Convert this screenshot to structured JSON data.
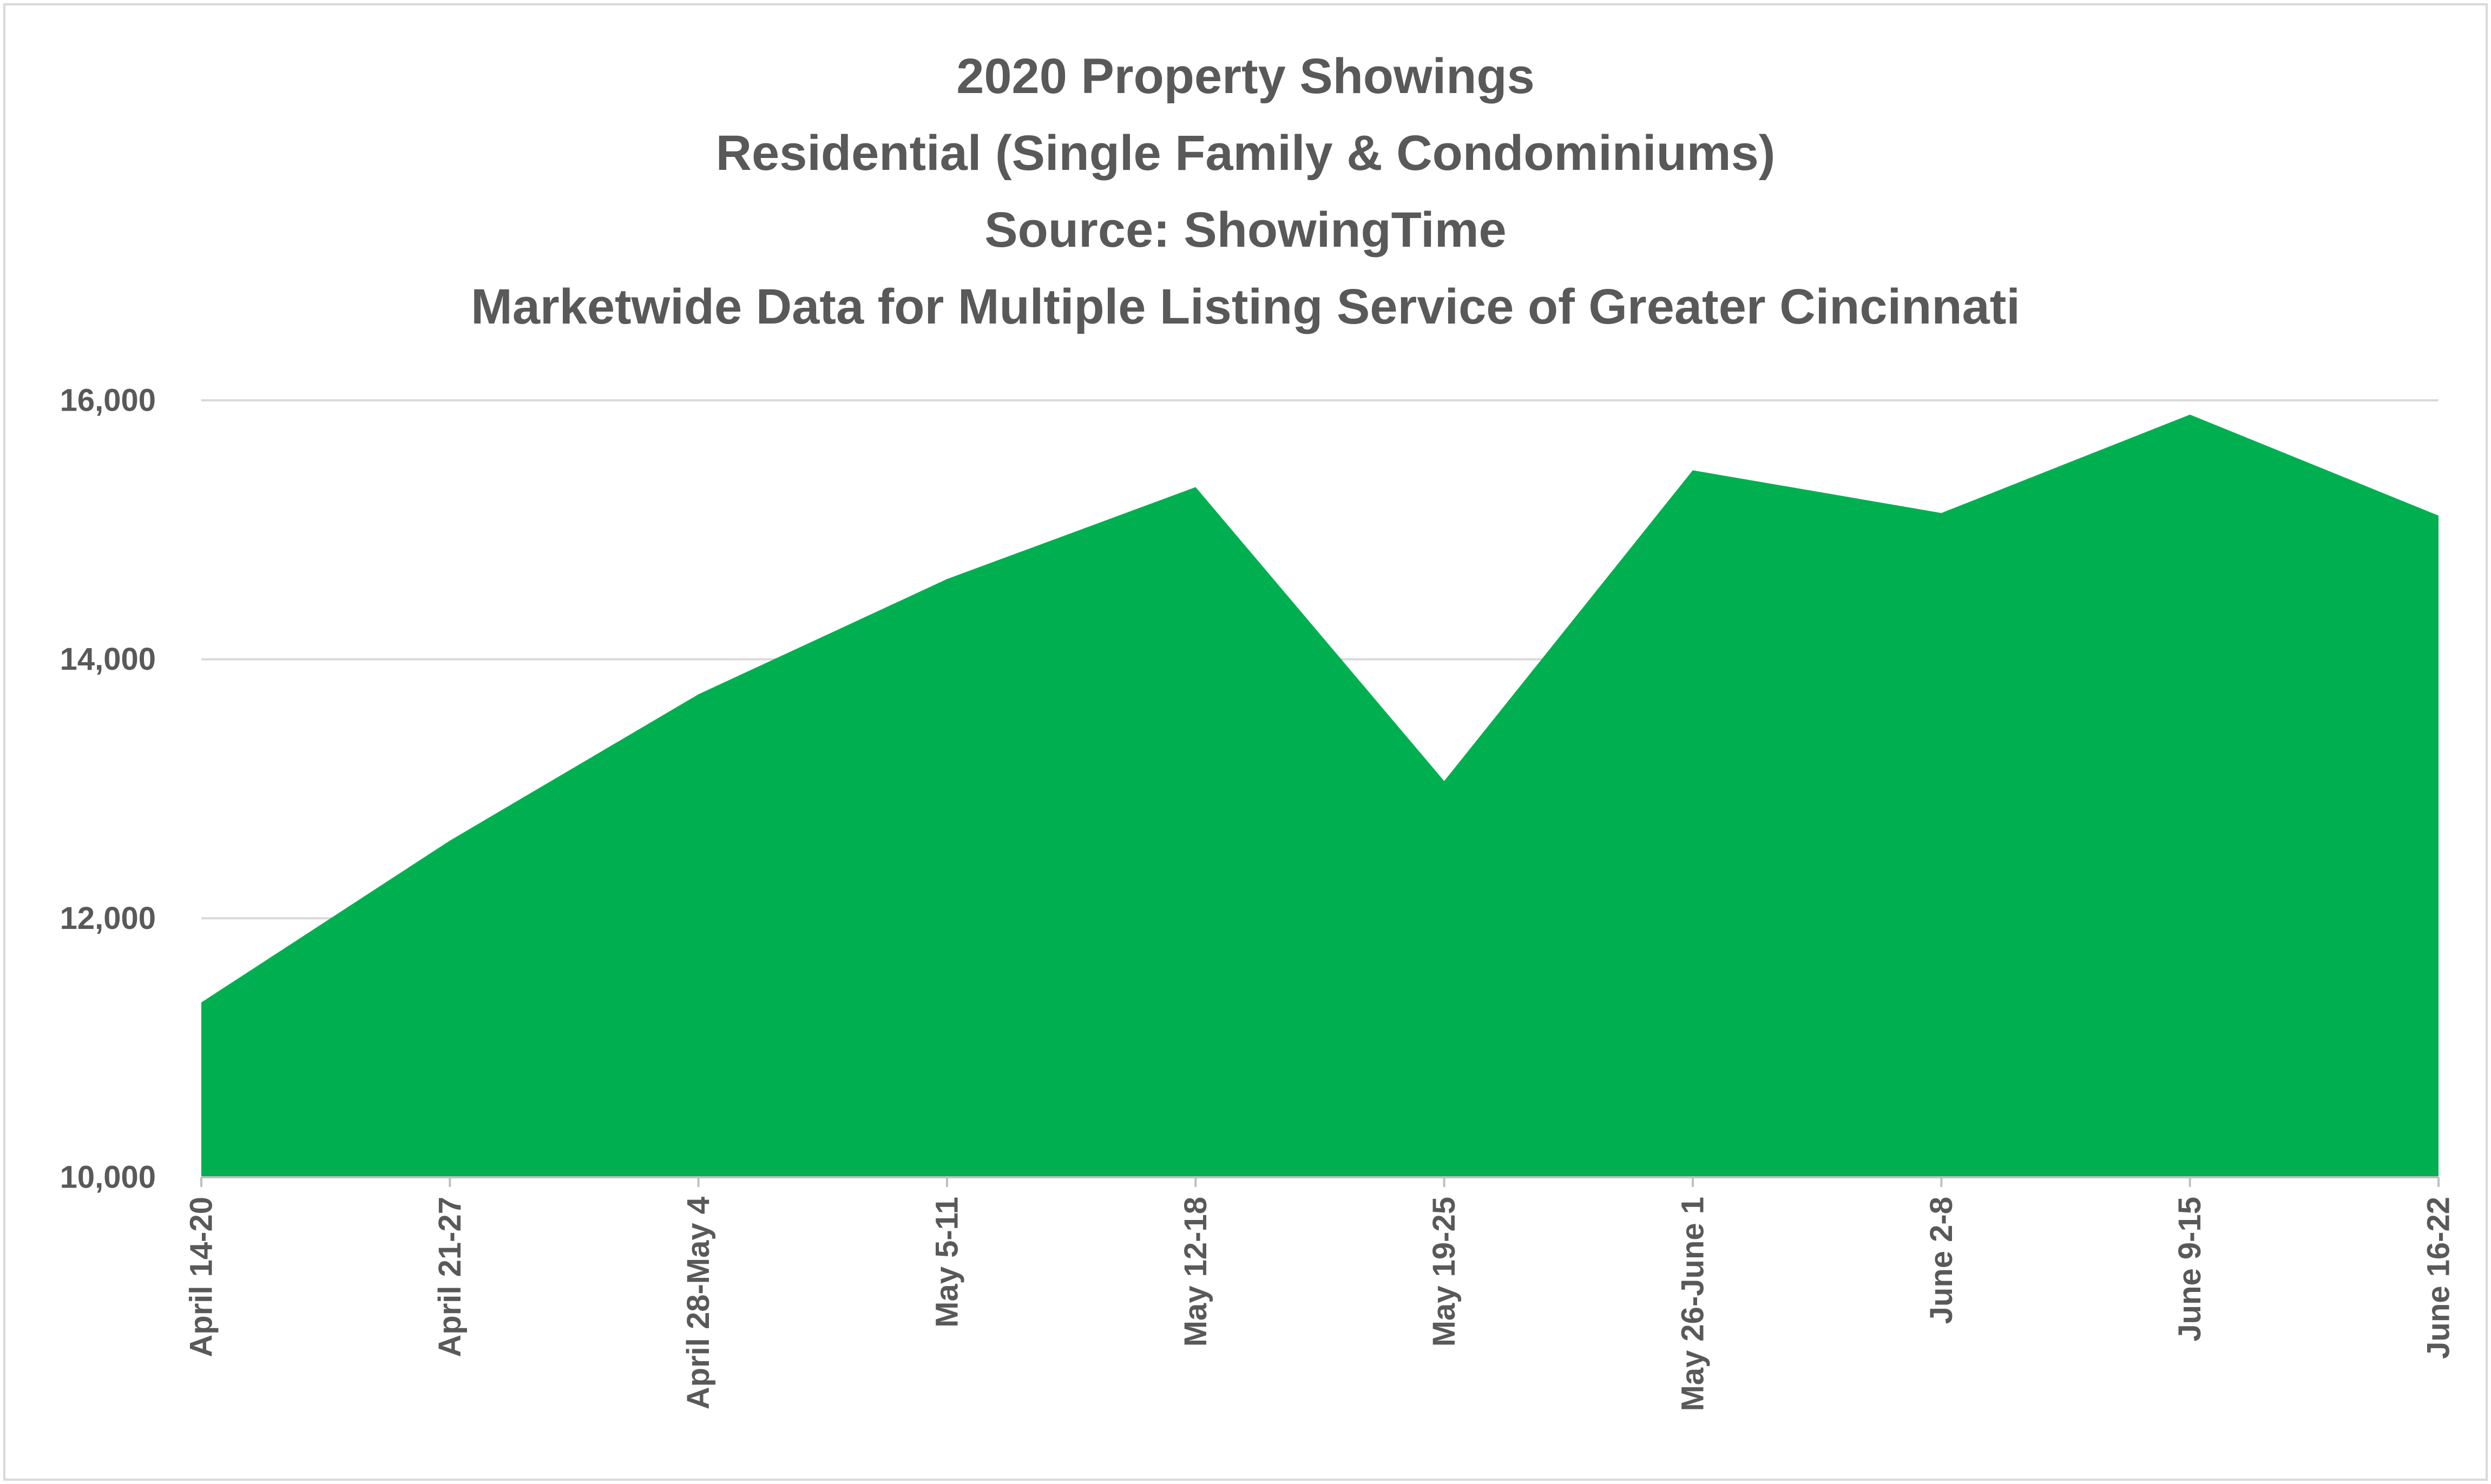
{
  "chart_data": {
    "type": "area",
    "title_lines": [
      "2020 Property Showings",
      "Residential (Single Family & Condominiums)",
      "Source: ShowingTime",
      "Marketwide Data for Multiple Listing Service of Greater Cincinnati"
    ],
    "categories": [
      "April 14-20",
      "April 21-27",
      "April 28-May 4",
      "May 5-11",
      "May 12-18",
      "May 19-25",
      "May 26-June 1",
      "June 2-8",
      "June 9-15",
      "June 16-22"
    ],
    "values": [
      11350,
      12600,
      13730,
      14620,
      15330,
      13060,
      15460,
      15130,
      15890,
      15110
    ],
    "ylim": [
      10000,
      16000
    ],
    "yticks": [
      10000,
      12000,
      14000,
      16000
    ],
    "ytick_labels": [
      "10,000",
      "12,000",
      "14,000",
      "16,000"
    ],
    "xlabel": "",
    "ylabel": "",
    "grid": true,
    "legend": "none",
    "fill_color": "#00b050",
    "grid_color": "#d9d9d9",
    "axis_color": "#bfbfbf",
    "text_color": "#595959"
  }
}
